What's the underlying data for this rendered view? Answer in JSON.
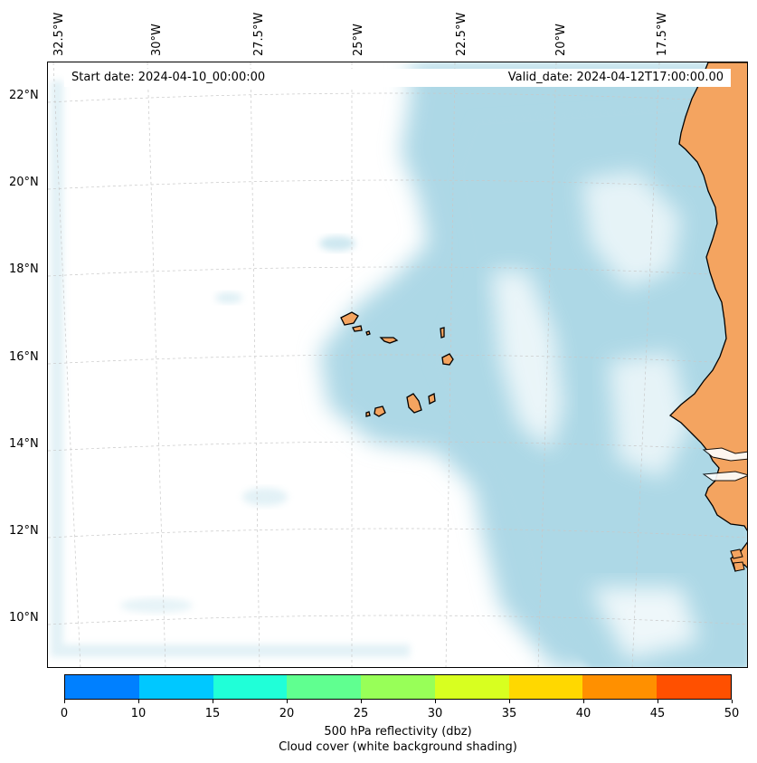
{
  "header": {
    "start_date": "Start date: 2024-04-10_00:00:00",
    "valid_date": "Valid_date: 2024-04-12T17:00:00.00"
  },
  "longitude_ticks": [
    "32.5°W",
    "30°W",
    "27.5°W",
    "25°W",
    "22.5°W",
    "20°W",
    "17.5°W"
  ],
  "latitude_ticks": [
    "22°N",
    "20°N",
    "18°N",
    "16°N",
    "14°N",
    "12°N",
    "10°N"
  ],
  "colorbar": {
    "ticks": [
      "0",
      "10",
      "15",
      "20",
      "25",
      "30",
      "35",
      "40",
      "45",
      "50"
    ],
    "colors": [
      "#0080ff",
      "#00c8ff",
      "#20ffd8",
      "#60ff90",
      "#98ff58",
      "#d8ff20",
      "#ffd800",
      "#ff9000",
      "#ff5000"
    ],
    "title": "500 hPa reflectivity (dbz)",
    "subtitle": "Cloud cover (white background shading)"
  },
  "colors": {
    "cloud_cover": "#add8e6",
    "land": "#f4a460",
    "coastline": "#000000",
    "gridline": "#c8c8c8"
  }
}
